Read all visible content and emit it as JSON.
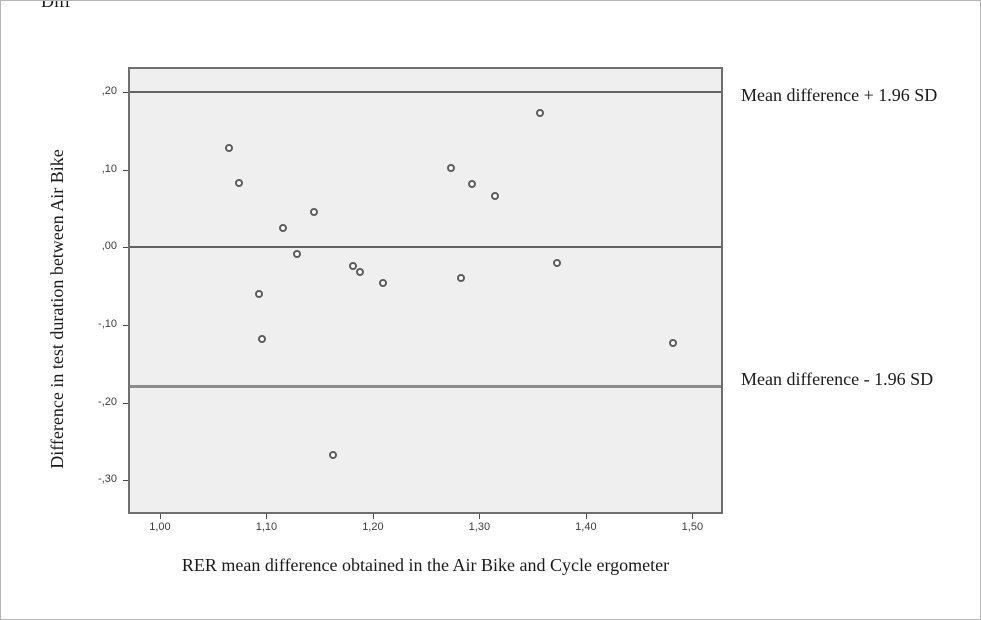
{
  "figure": {
    "cropped_top_text": "Diff",
    "y_axis_title": "Difference in test duration between Air Bike",
    "x_axis_title": "RER mean difference obtained in the Air Bike and Cycle ergometer",
    "annotation_upper": "Mean difference + 1.96 SD",
    "annotation_lower": "Mean difference - 1.96 SD"
  },
  "chart_data": {
    "type": "scatter",
    "title": "",
    "xlabel": "RER mean difference obtained in the Air Bike and Cycle ergometer",
    "ylabel": "Difference in test duration between Air Bike",
    "xlim": [
      0.97,
      1.525
    ],
    "ylim": [
      -0.338,
      0.232
    ],
    "grid": false,
    "legend": "none",
    "marker": "open-circle",
    "decimal_separator": ",",
    "x_ticks": {
      "values": [
        1.0,
        1.1,
        1.2,
        1.3,
        1.4,
        1.5
      ],
      "labels": [
        "1,00",
        "1,10",
        "1,20",
        "1,30",
        "1,40",
        "1,50"
      ]
    },
    "y_ticks": {
      "values": [
        0.2,
        0.1,
        0.0,
        -0.1,
        -0.2,
        -0.3
      ],
      "labels": [
        ",20",
        ",10",
        ",00",
        "-,10",
        "-,20",
        "-,30"
      ]
    },
    "reference_lines": [
      {
        "role": "upper",
        "y": 0.203,
        "label": "Mean difference + 1.96 SD"
      },
      {
        "role": "mean",
        "y": 0.003,
        "label": ""
      },
      {
        "role": "lower",
        "y": -0.176,
        "label": "Mean difference - 1.96 SD"
      }
    ],
    "points": [
      {
        "x": 1.063,
        "y": 0.13
      },
      {
        "x": 1.072,
        "y": 0.085
      },
      {
        "x": 1.143,
        "y": 0.048
      },
      {
        "x": 1.114,
        "y": 0.028
      },
      {
        "x": 1.127,
        "y": -0.006
      },
      {
        "x": 1.179,
        "y": -0.022
      },
      {
        "x": 1.186,
        "y": -0.029
      },
      {
        "x": 1.208,
        "y": -0.043
      },
      {
        "x": 1.091,
        "y": -0.058
      },
      {
        "x": 1.094,
        "y": -0.115
      },
      {
        "x": 1.161,
        "y": -0.265
      },
      {
        "x": 1.271,
        "y": 0.104
      },
      {
        "x": 1.291,
        "y": 0.084
      },
      {
        "x": 1.313,
        "y": 0.069
      },
      {
        "x": 1.355,
        "y": 0.176
      },
      {
        "x": 1.371,
        "y": -0.018
      },
      {
        "x": 1.281,
        "y": -0.037
      },
      {
        "x": 1.48,
        "y": -0.12
      }
    ],
    "colors": {
      "plot_background": "#efefef",
      "plot_border": "#6f6f6f",
      "reference_line": "#636363",
      "lower_reference_line": "#8c8c8c",
      "marker_ring": "#5c5c5c",
      "tick_text": "#3d3d3d",
      "text": "#1a1a1a"
    }
  }
}
